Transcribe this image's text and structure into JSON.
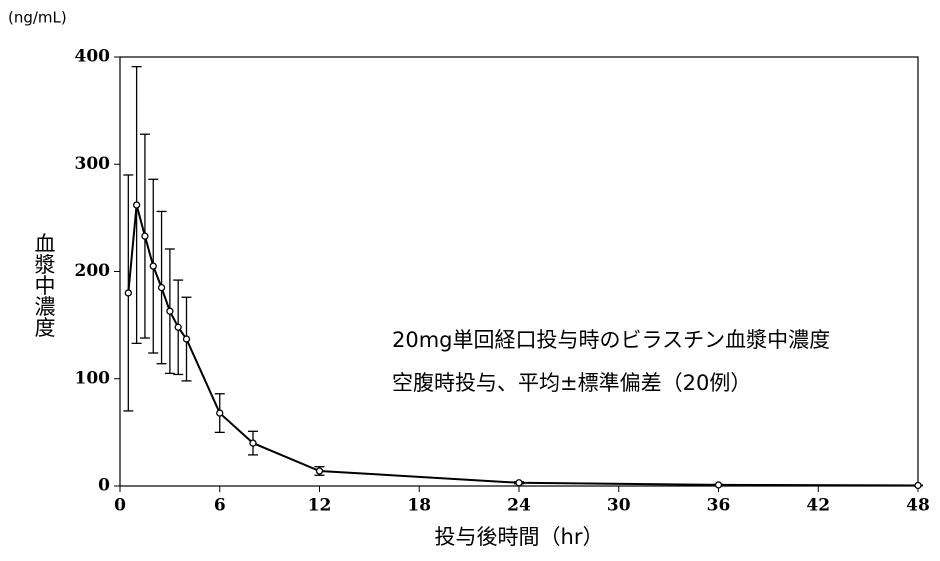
{
  "chart_data": {
    "type": "line",
    "y_unit": "(ng/mL)",
    "ylabel": "血漿中濃度",
    "xlabel": "投与後時間（hr）",
    "annotations": [
      "20mg単回経口投与時のビラスチン血漿中濃度",
      "空腹時投与、平均±標準偏差（20例）"
    ],
    "x": [
      0.5,
      1,
      1.5,
      2,
      2.5,
      3,
      3.5,
      4,
      6,
      8,
      12,
      24,
      36,
      48
    ],
    "series": [
      {
        "color": "#000000",
        "values": [
          180,
          262,
          233,
          205,
          185,
          163,
          148,
          137,
          68,
          40,
          14,
          3,
          1,
          0.5
        ],
        "errors": [
          110,
          129,
          95,
          81,
          71,
          58,
          44,
          39,
          18,
          11,
          4,
          1,
          0.5,
          0.3
        ]
      }
    ],
    "xlim": [
      0,
      48
    ],
    "xticks": [
      0,
      6,
      12,
      18,
      24,
      30,
      36,
      42,
      48
    ],
    "ylim": [
      0,
      400
    ],
    "yticks": [
      0,
      100,
      200,
      300,
      400
    ]
  }
}
